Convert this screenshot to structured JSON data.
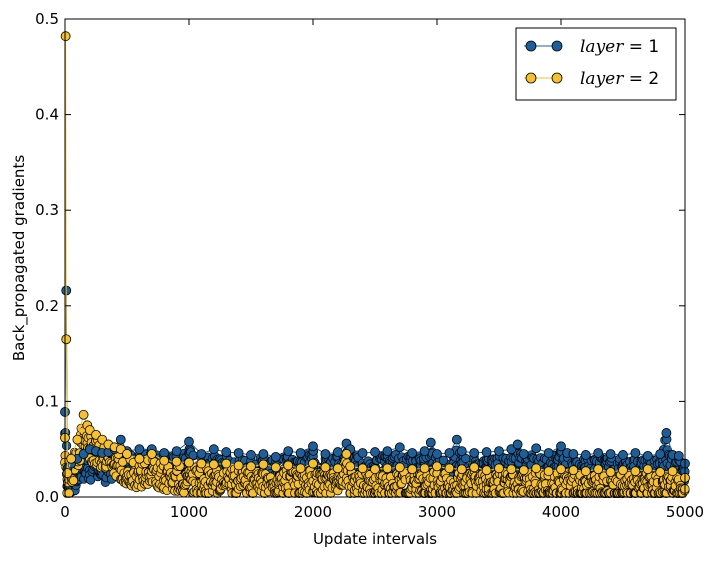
{
  "chart_data": {
    "type": "scatter",
    "title": "",
    "xlabel": "Update intervals",
    "ylabel": "Back_propagated gradients",
    "xlim": [
      0,
      5000
    ],
    "ylim": [
      0,
      0.5
    ],
    "x_ticks": [
      0,
      1000,
      2000,
      3000,
      4000,
      5000
    ],
    "x_tick_labels": [
      "0",
      "1000",
      "2000",
      "3000",
      "4000",
      "5000"
    ],
    "y_ticks": [
      0.0,
      0.1,
      0.2,
      0.3,
      0.4,
      0.5
    ],
    "y_tick_labels": [
      "0.0",
      "0.1",
      "0.2",
      "0.3",
      "0.4",
      "0.5"
    ],
    "grid": false,
    "legend_position": "top-right",
    "series": [
      {
        "name": "layer = 1",
        "legend_var": "layer",
        "legend_rest": " = 1",
        "color": "#1f5f99",
        "x": [
          0,
          10,
          20,
          50,
          100,
          150,
          200,
          250,
          300,
          350,
          400,
          450,
          500,
          600,
          700,
          800,
          900,
          1000,
          1100,
          1200,
          1300,
          1400,
          1500,
          1600,
          1700,
          1800,
          1900,
          2000,
          2100,
          2200,
          2270,
          2300,
          2400,
          2500,
          2600,
          2700,
          2800,
          2900,
          2950,
          3000,
          3100,
          3160,
          3200,
          3300,
          3400,
          3500,
          3600,
          3650,
          3700,
          3800,
          3900,
          4000,
          4050,
          4100,
          4200,
          4300,
          4400,
          4500,
          4600,
          4700,
          4800,
          4850,
          4900,
          4950,
          5000
        ],
        "y": [
          0.089,
          0.216,
          0.03,
          0.035,
          0.04,
          0.045,
          0.05,
          0.048,
          0.046,
          0.047,
          0.05,
          0.06,
          0.048,
          0.05,
          0.05,
          0.046,
          0.048,
          0.058,
          0.045,
          0.05,
          0.047,
          0.046,
          0.044,
          0.045,
          0.042,
          0.048,
          0.046,
          0.053,
          0.045,
          0.047,
          0.056,
          0.05,
          0.046,
          0.047,
          0.048,
          0.052,
          0.046,
          0.048,
          0.057,
          0.045,
          0.046,
          0.06,
          0.048,
          0.046,
          0.047,
          0.048,
          0.05,
          0.055,
          0.045,
          0.051,
          0.046,
          0.053,
          0.046,
          0.045,
          0.044,
          0.046,
          0.045,
          0.044,
          0.046,
          0.043,
          0.045,
          0.067,
          0.044,
          0.043,
          0.035
        ]
      },
      {
        "name": "layer = 2",
        "legend_var": "layer",
        "legend_rest": " = 2",
        "color": "#f7c030",
        "x": [
          0,
          5,
          10,
          20,
          50,
          100,
          150,
          180,
          200,
          250,
          300,
          350,
          400,
          450,
          500,
          600,
          700,
          800,
          900,
          1000,
          1100,
          1200,
          1300,
          1400,
          1500,
          1600,
          1700,
          1800,
          1900,
          2000,
          2100,
          2200,
          2270,
          2300,
          2400,
          2500,
          2600,
          2700,
          2800,
          2900,
          3000,
          3100,
          3200,
          3300,
          3400,
          3500,
          3600,
          3700,
          3800,
          3900,
          4000,
          4100,
          4200,
          4300,
          4400,
          4500,
          4600,
          4700,
          4800,
          4900,
          5000
        ],
        "y": [
          0.062,
          0.482,
          0.165,
          0.025,
          0.04,
          0.06,
          0.086,
          0.075,
          0.07,
          0.065,
          0.06,
          0.055,
          0.052,
          0.05,
          0.045,
          0.04,
          0.045,
          0.038,
          0.037,
          0.036,
          0.035,
          0.034,
          0.035,
          0.033,
          0.032,
          0.034,
          0.031,
          0.033,
          0.03,
          0.035,
          0.031,
          0.03,
          0.045,
          0.032,
          0.03,
          0.029,
          0.03,
          0.031,
          0.029,
          0.03,
          0.032,
          0.03,
          0.029,
          0.031,
          0.028,
          0.03,
          0.029,
          0.028,
          0.03,
          0.027,
          0.029,
          0.028,
          0.027,
          0.029,
          0.026,
          0.028,
          0.027,
          0.029,
          0.026,
          0.027,
          0.02
        ]
      }
    ]
  }
}
